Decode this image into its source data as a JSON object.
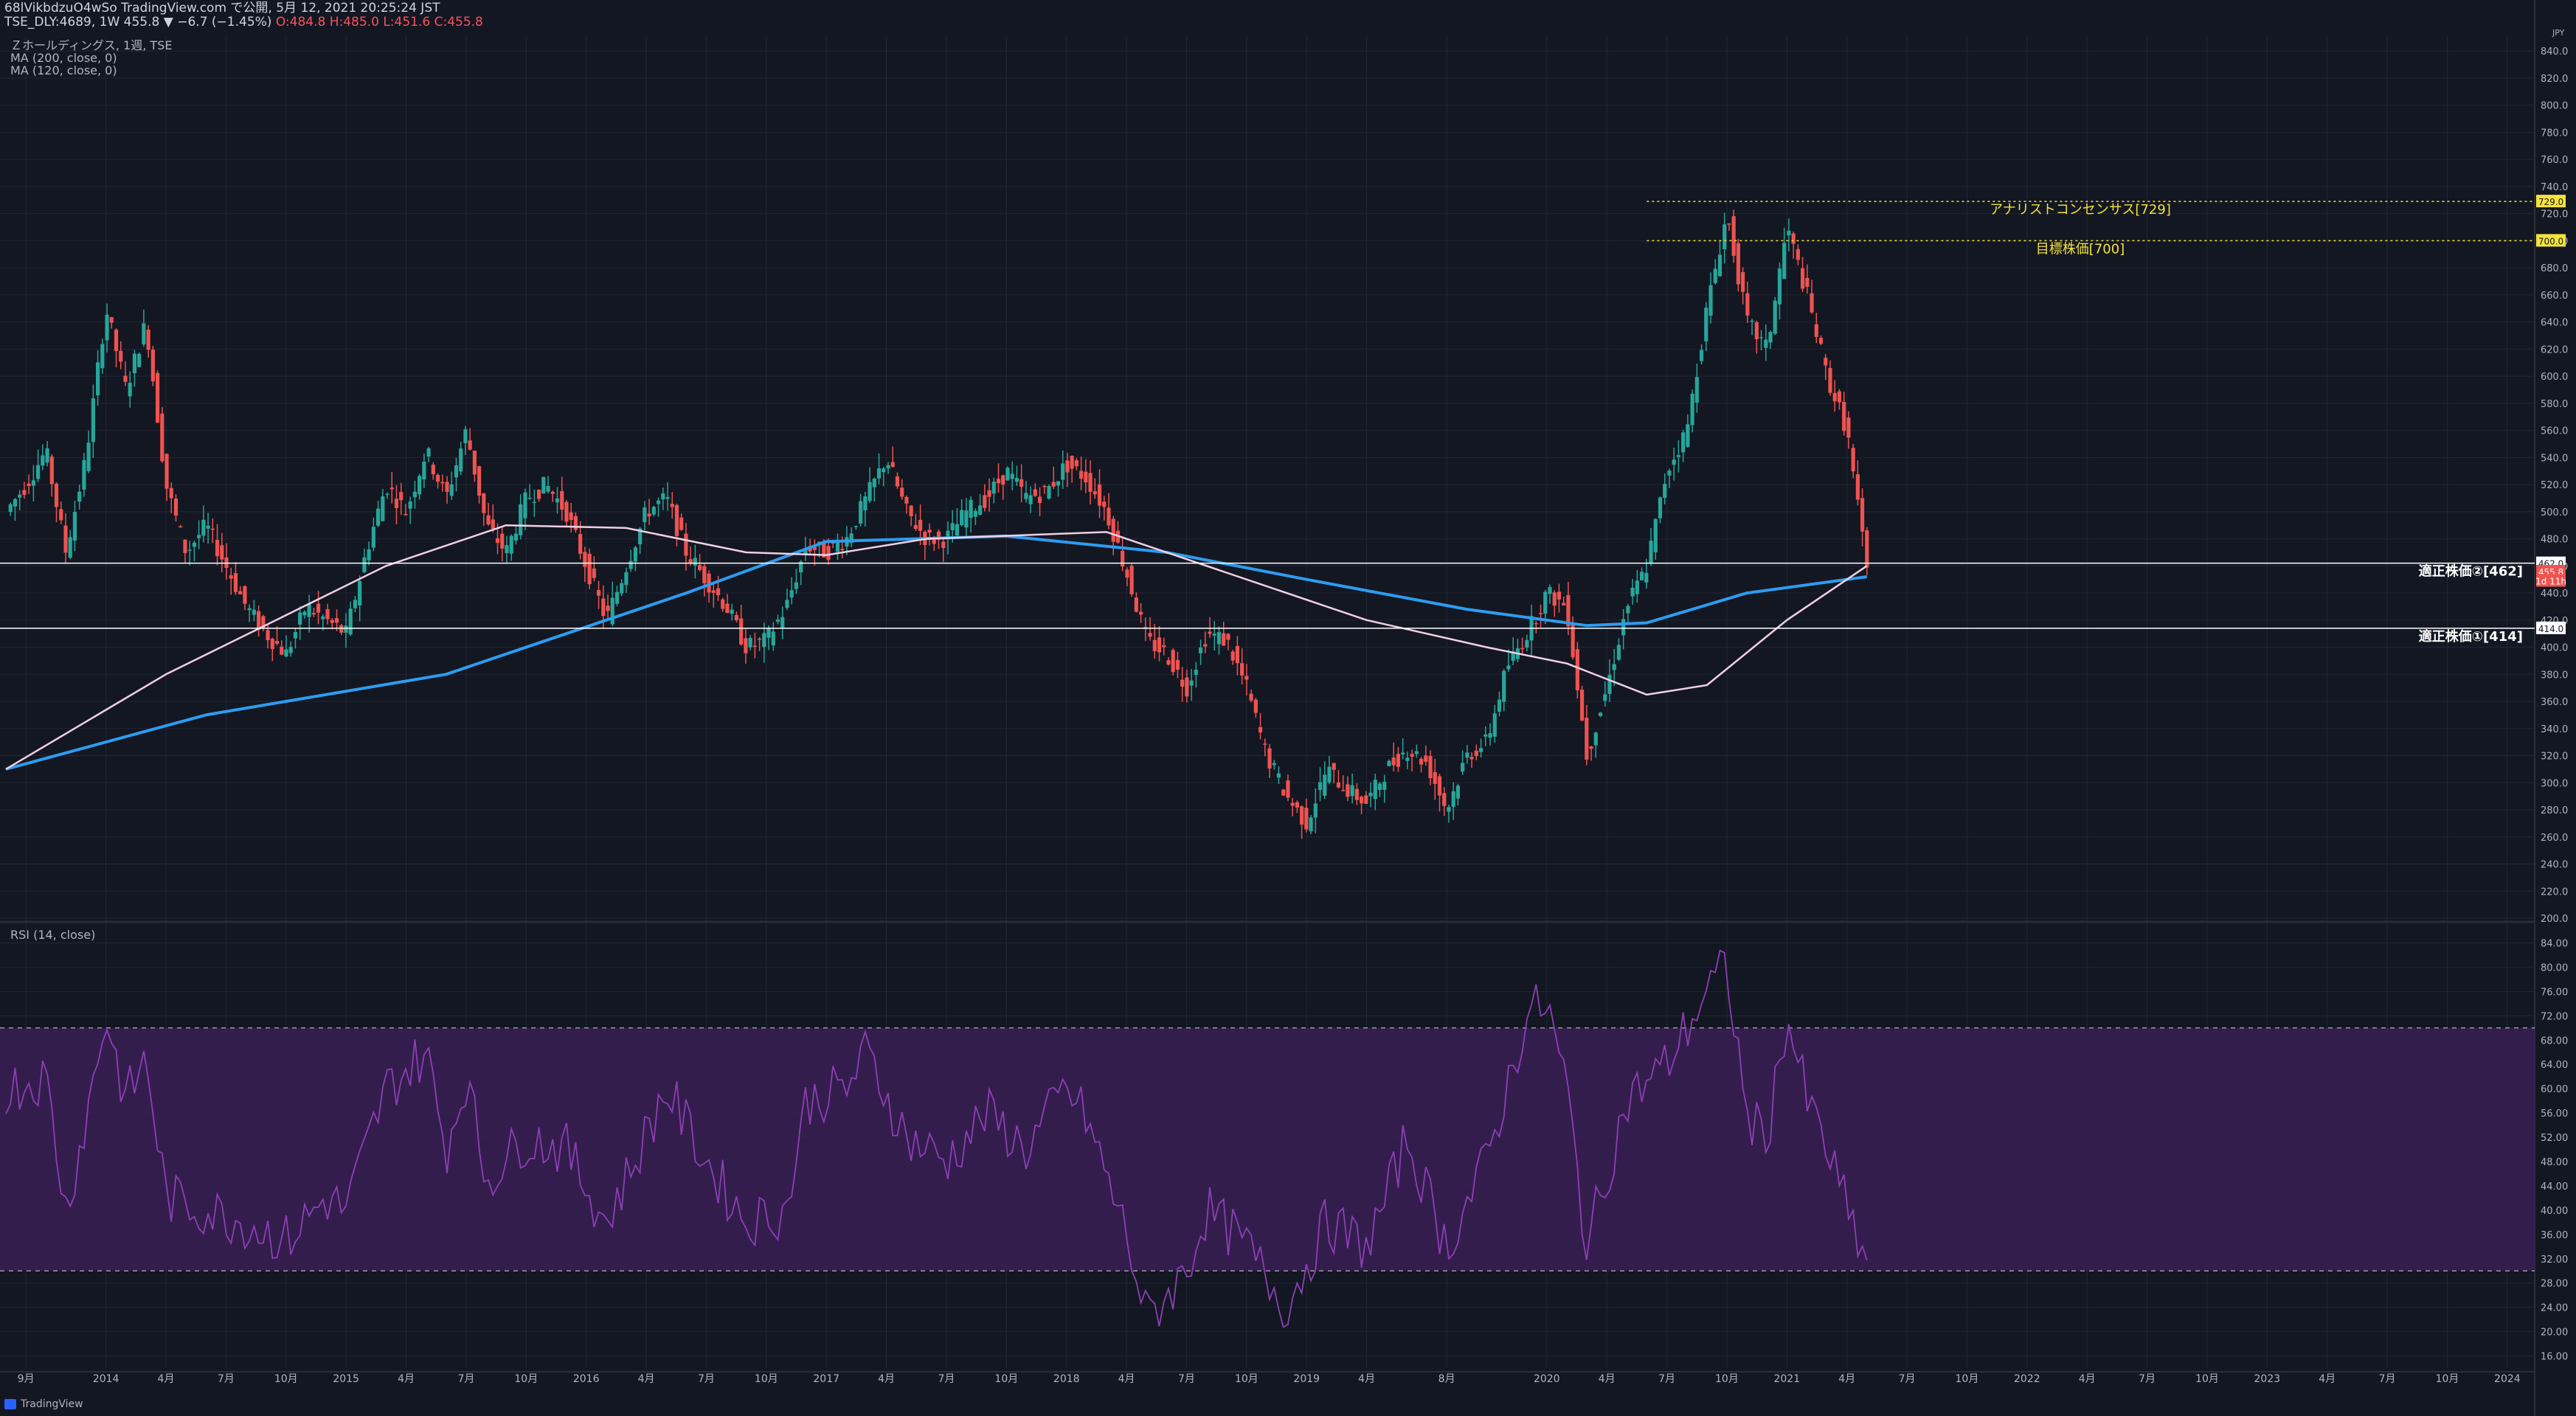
{
  "header": {
    "line1": "68lVikbdzuO4wSo TradingView.com で公開, 5月 12, 2021 20:25:24 JST",
    "line2_prefix": "TSE_DLY:4689, 1W 455.8 ▼ −6.7 (−1.45%)",
    "ohlc_o": "O:484.8",
    "ohlc_h": "H:485.0",
    "ohlc_l": "L:451.6",
    "ohlc_c": "C:455.8"
  },
  "legend": {
    "symbol": "Ｚホールディングス, 1週, TSE",
    "ma200": "MA (200, close, 0)",
    "ma120": "MA (120, close, 0)",
    "rsi": "RSI (14, close)"
  },
  "branding": "TradingView",
  "colors": {
    "background": "#131722",
    "grid": "#232735",
    "up": "#26a69a",
    "down": "#ef5350",
    "ma200": "#2d9cf0",
    "ma120": "#f0d0e4",
    "rsi_line": "#8d3fb5",
    "rsi_band": "#3a1f55",
    "target": "#f5e33c"
  },
  "chart_data": [
    {
      "type": "candlestick",
      "currency": "JPY",
      "y_ticks": [
        200,
        220,
        240,
        260,
        280,
        300,
        320,
        340,
        360,
        380,
        400,
        420,
        440,
        460,
        480,
        500,
        520,
        540,
        560,
        580,
        600,
        620,
        640,
        660,
        680,
        700,
        720,
        740,
        760,
        780,
        800,
        820,
        840
      ],
      "x_ticks": [
        "9月",
        "2014",
        "4月",
        "7月",
        "10月",
        "2015",
        "4月",
        "7月",
        "10月",
        "2016",
        "4月",
        "7月",
        "10月",
        "2017",
        "4月",
        "7月",
        "10月",
        "2018",
        "4月",
        "7月",
        "10月",
        "2019",
        "4月",
        "8月",
        "2020",
        "4月",
        "7月",
        "10月",
        "2021",
        "4月",
        "7月",
        "10月",
        "2022",
        "4月",
        "7月",
        "10月",
        "2023",
        "4月",
        "7月",
        "10月",
        "2024"
      ],
      "x_tick_dates": [
        "2013-09",
        "2014-01",
        "2014-04",
        "2014-07",
        "2014-10",
        "2015-01",
        "2015-04",
        "2015-07",
        "2015-10",
        "2016-01",
        "2016-04",
        "2016-07",
        "2016-10",
        "2017-01",
        "2017-04",
        "2017-07",
        "2017-10",
        "2018-01",
        "2018-04",
        "2018-07",
        "2018-10",
        "2019-01",
        "2019-04",
        "2019-08",
        "2020-01",
        "2020-04",
        "2020-07",
        "2020-10",
        "2021-01",
        "2021-04",
        "2021-07",
        "2021-10",
        "2022-01",
        "2022-04",
        "2022-07",
        "2022-10",
        "2023-01",
        "2023-04",
        "2023-07",
        "2023-10",
        "2024-01"
      ],
      "price_path": [
        [
          "2013-08",
          500
        ],
        [
          "2013-09",
          520
        ],
        [
          "2013-10",
          545
        ],
        [
          "2013-11",
          470
        ],
        [
          "2013-12",
          540
        ],
        [
          "2014-01",
          650
        ],
        [
          "2014-02",
          590
        ],
        [
          "2014-03",
          640
        ],
        [
          "2014-04",
          520
        ],
        [
          "2014-05",
          470
        ],
        [
          "2014-06",
          490
        ],
        [
          "2014-07",
          460
        ],
        [
          "2014-08",
          430
        ],
        [
          "2014-09",
          410
        ],
        [
          "2014-10",
          395
        ],
        [
          "2014-11",
          430
        ],
        [
          "2014-12",
          420
        ],
        [
          "2015-01",
          410
        ],
        [
          "2015-02",
          470
        ],
        [
          "2015-03",
          520
        ],
        [
          "2015-04",
          500
        ],
        [
          "2015-05",
          545
        ],
        [
          "2015-06",
          510
        ],
        [
          "2015-07",
          560
        ],
        [
          "2015-08",
          490
        ],
        [
          "2015-09",
          470
        ],
        [
          "2015-10",
          510
        ],
        [
          "2015-11",
          520
        ],
        [
          "2015-12",
          500
        ],
        [
          "2016-01",
          460
        ],
        [
          "2016-02",
          420
        ],
        [
          "2016-03",
          460
        ],
        [
          "2016-04",
          500
        ],
        [
          "2016-05",
          510
        ],
        [
          "2016-06",
          470
        ],
        [
          "2016-07",
          450
        ],
        [
          "2016-08",
          430
        ],
        [
          "2016-09",
          400
        ],
        [
          "2016-10",
          405
        ],
        [
          "2016-11",
          430
        ],
        [
          "2016-12",
          475
        ],
        [
          "2017-01",
          470
        ],
        [
          "2017-02",
          480
        ],
        [
          "2017-03",
          510
        ],
        [
          "2017-04",
          540
        ],
        [
          "2017-05",
          500
        ],
        [
          "2017-06",
          480
        ],
        [
          "2017-07",
          480
        ],
        [
          "2017-08",
          500
        ],
        [
          "2017-09",
          510
        ],
        [
          "2017-10",
          530
        ],
        [
          "2017-11",
          510
        ],
        [
          "2017-12",
          515
        ],
        [
          "2018-01",
          535
        ],
        [
          "2018-02",
          525
        ],
        [
          "2018-03",
          500
        ],
        [
          "2018-04",
          455
        ],
        [
          "2018-05",
          405
        ],
        [
          "2018-06",
          395
        ],
        [
          "2018-07",
          370
        ],
        [
          "2018-08",
          410
        ],
        [
          "2018-09",
          405
        ],
        [
          "2018-10",
          370
        ],
        [
          "2018-11",
          320
        ],
        [
          "2018-12",
          290
        ],
        [
          "2019-01",
          270
        ],
        [
          "2019-02",
          310
        ],
        [
          "2019-03",
          295
        ],
        [
          "2019-04",
          285
        ],
        [
          "2019-05",
          310
        ],
        [
          "2019-06",
          325
        ],
        [
          "2019-07",
          315
        ],
        [
          "2019-08",
          280
        ],
        [
          "2019-09",
          320
        ],
        [
          "2019-10",
          330
        ],
        [
          "2019-11",
          385
        ],
        [
          "2019-12",
          410
        ],
        [
          "2020-01",
          440
        ],
        [
          "2020-02",
          430
        ],
        [
          "2020-03",
          320
        ],
        [
          "2020-04",
          370
        ],
        [
          "2020-05",
          430
        ],
        [
          "2020-06",
          460
        ],
        [
          "2020-07",
          530
        ],
        [
          "2020-08",
          560
        ],
        [
          "2020-09",
          650
        ],
        [
          "2020-10",
          720
        ],
        [
          "2020-11",
          640
        ],
        [
          "2020-12",
          620
        ],
        [
          "2021-01",
          710
        ],
        [
          "2021-02",
          660
        ],
        [
          "2021-03",
          600
        ],
        [
          "2021-04",
          560
        ],
        [
          "2021-05",
          456
        ]
      ],
      "last": {
        "open": 484.8,
        "high": 485.0,
        "low": 451.6,
        "close": 455.8
      },
      "moving_averages": [
        {
          "name": "MA (200, close, 0)",
          "path": [
            [
              "2013-08",
              310
            ],
            [
              "2014-06",
              350
            ],
            [
              "2015-06",
              380
            ],
            [
              "2016-06",
              440
            ],
            [
              "2017-01",
              478
            ],
            [
              "2017-10",
              482
            ],
            [
              "2018-06",
              470
            ],
            [
              "2019-01",
              450
            ],
            [
              "2019-09",
              428
            ],
            [
              "2020-03",
              416
            ],
            [
              "2020-06",
              418
            ],
            [
              "2020-11",
              440
            ],
            [
              "2021-05",
              452
            ]
          ]
        },
        {
          "name": "MA (120, close, 0)",
          "path": [
            [
              "2013-08",
              310
            ],
            [
              "2014-04",
              380
            ],
            [
              "2015-03",
              460
            ],
            [
              "2015-09",
              490
            ],
            [
              "2016-03",
              488
            ],
            [
              "2016-09",
              470
            ],
            [
              "2017-01",
              468
            ],
            [
              "2017-06",
              480
            ],
            [
              "2018-03",
              485
            ],
            [
              "2018-09",
              455
            ],
            [
              "2019-04",
              420
            ],
            [
              "2019-10",
              400
            ],
            [
              "2020-02",
              388
            ],
            [
              "2020-06",
              365
            ],
            [
              "2020-09",
              372
            ],
            [
              "2021-01",
              420
            ],
            [
              "2021-05",
              460
            ]
          ]
        }
      ],
      "horizontal_lines": [
        {
          "label": "適正株価②[462]",
          "value": 462,
          "tag": "462.0"
        },
        {
          "label": "適正株価①[414]",
          "value": 414,
          "tag": "414.0"
        }
      ],
      "target_lines": [
        {
          "label": "アナリストコンセンサス[729]",
          "value": 729,
          "tag": "729.0",
          "from": "2020-06"
        },
        {
          "label": "目標株価[700]",
          "value": 700,
          "tag": "700.0",
          "from": "2020-06"
        }
      ],
      "price_tags": [
        {
          "value": 462,
          "text": "462.0",
          "color": "#ffffff",
          "text_color": "#131722"
        },
        {
          "value": 455.8,
          "text": "455.8",
          "color": "#ef5350",
          "text_color": "#ffffff"
        },
        {
          "value": 449,
          "text": "1d 11h",
          "color": "#ef5350",
          "text_color": "#ffffff"
        },
        {
          "value": 414,
          "text": "414.0",
          "color": "#ffffff",
          "text_color": "#131722"
        },
        {
          "value": 729,
          "text": "729.0",
          "color": "#f5e33c",
          "text_color": "#131722"
        },
        {
          "value": 700,
          "text": "700.0",
          "color": "#f5e33c",
          "text_color": "#131722"
        }
      ]
    },
    {
      "type": "line",
      "name": "RSI (14, close)",
      "y_ticks": [
        16,
        20,
        24,
        28,
        32,
        36,
        40,
        44,
        48,
        52,
        56,
        60,
        64,
        68,
        72,
        76,
        80,
        84
      ],
      "band": [
        30,
        70
      ],
      "path": [
        [
          "2013-08",
          60
        ],
        [
          "2013-10",
          62
        ],
        [
          "2013-11",
          40
        ],
        [
          "2013-12",
          55
        ],
        [
          "2014-01",
          72
        ],
        [
          "2014-02",
          58
        ],
        [
          "2014-03",
          65
        ],
        [
          "2014-04",
          42
        ],
        [
          "2014-06",
          40
        ],
        [
          "2014-08",
          38
        ],
        [
          "2014-10",
          35
        ],
        [
          "2014-12",
          42
        ],
        [
          "2015-01",
          40
        ],
        [
          "2015-03",
          60
        ],
        [
          "2015-05",
          66
        ],
        [
          "2015-06",
          50
        ],
        [
          "2015-07",
          62
        ],
        [
          "2015-08",
          45
        ],
        [
          "2015-10",
          52
        ],
        [
          "2015-12",
          50
        ],
        [
          "2016-02",
          38
        ],
        [
          "2016-03",
          45
        ],
        [
          "2016-05",
          60
        ],
        [
          "2016-07",
          48
        ],
        [
          "2016-09",
          38
        ],
        [
          "2016-11",
          40
        ],
        [
          "2016-12",
          58
        ],
        [
          "2017-02",
          60
        ],
        [
          "2017-03",
          66
        ],
        [
          "2017-05",
          52
        ],
        [
          "2017-07",
          48
        ],
        [
          "2017-09",
          56
        ],
        [
          "2017-11",
          50
        ],
        [
          "2018-01",
          60
        ],
        [
          "2018-02",
          55
        ],
        [
          "2018-04",
          36
        ],
        [
          "2018-05",
          22
        ],
        [
          "2018-07",
          30
        ],
        [
          "2018-08",
          40
        ],
        [
          "2018-10",
          34
        ],
        [
          "2018-12",
          24
        ],
        [
          "2019-02",
          38
        ],
        [
          "2019-04",
          34
        ],
        [
          "2019-05",
          42
        ],
        [
          "2019-06",
          52
        ],
        [
          "2019-08",
          34
        ],
        [
          "2019-10",
          48
        ],
        [
          "2019-11",
          60
        ],
        [
          "2019-12",
          72
        ],
        [
          "2020-01",
          74
        ],
        [
          "2020-02",
          60
        ],
        [
          "2020-03",
          34
        ],
        [
          "2020-05",
          58
        ],
        [
          "2020-07",
          64
        ],
        [
          "2020-09",
          76
        ],
        [
          "2020-10",
          80
        ],
        [
          "2020-11",
          55
        ],
        [
          "2020-12",
          52
        ],
        [
          "2021-01",
          72
        ],
        [
          "2021-02",
          58
        ],
        [
          "2021-03",
          50
        ],
        [
          "2021-04",
          40
        ],
        [
          "2021-05",
          31
        ]
      ]
    }
  ]
}
